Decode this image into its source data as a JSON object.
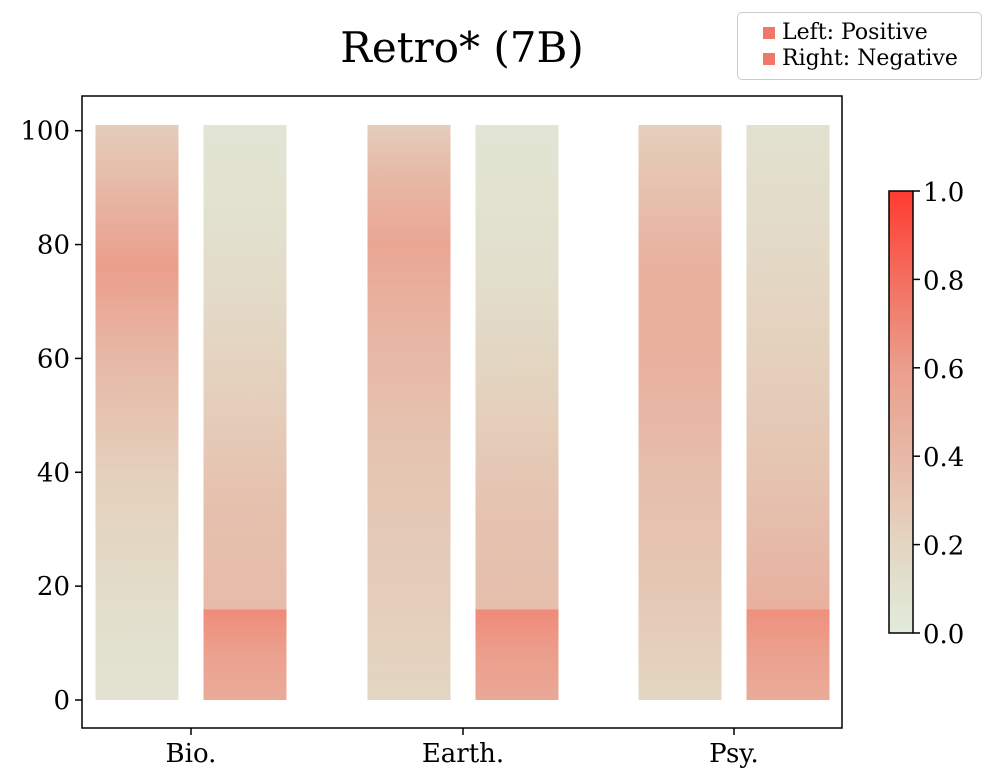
{
  "chart_data": {
    "type": "heatmap",
    "title": "Retro* (7B)",
    "categories": [
      "Bio.",
      "Earth.",
      "Psy."
    ],
    "ylim": [
      0,
      101
    ],
    "y_ticks": [
      "0",
      "20",
      "40",
      "60",
      "80",
      "100"
    ],
    "legend": {
      "placement": "top-right",
      "entries": [
        "Left: Positive",
        "Right: Negative"
      ],
      "swatch_color": "#f0786a"
    },
    "colorbar": {
      "min": 0.0,
      "max": 1.0,
      "tick_labels": [
        "0.0",
        "0.2",
        "0.4",
        "0.6",
        "0.8",
        "1.0"
      ],
      "colors": [
        "#e1ecdc",
        "#e3d6c2",
        "#e7b8a6",
        "#ec9e8c",
        "#f46f5f",
        "#ff3b30"
      ]
    },
    "series": [
      {
        "name": "Left: Positive",
        "category": "Bio.",
        "profile": [
          [
            0,
            0.08
          ],
          [
            15,
            0.12
          ],
          [
            40,
            0.24
          ],
          [
            60,
            0.4
          ],
          [
            76,
            0.6
          ],
          [
            90,
            0.4
          ],
          [
            101,
            0.26
          ]
        ]
      },
      {
        "name": "Right: Negative",
        "category": "Bio.",
        "profile": [
          [
            0,
            0.5
          ],
          [
            8,
            0.58
          ],
          [
            15.8,
            0.68
          ],
          [
            16,
            0.38
          ],
          [
            35,
            0.34
          ],
          [
            50,
            0.26
          ],
          [
            70,
            0.16
          ],
          [
            85,
            0.1
          ],
          [
            101,
            0.06
          ]
        ]
      },
      {
        "name": "Left: Positive",
        "category": "Earth.",
        "profile": [
          [
            0,
            0.2
          ],
          [
            20,
            0.26
          ],
          [
            45,
            0.32
          ],
          [
            65,
            0.42
          ],
          [
            80,
            0.54
          ],
          [
            92,
            0.4
          ],
          [
            101,
            0.26
          ]
        ]
      },
      {
        "name": "Right: Negative",
        "category": "Earth.",
        "profile": [
          [
            0,
            0.52
          ],
          [
            8,
            0.6
          ],
          [
            15.8,
            0.68
          ],
          [
            16,
            0.36
          ],
          [
            35,
            0.32
          ],
          [
            55,
            0.22
          ],
          [
            75,
            0.12
          ],
          [
            101,
            0.06
          ]
        ]
      },
      {
        "name": "Left: Positive",
        "category": "Psy.",
        "profile": [
          [
            0,
            0.2
          ],
          [
            20,
            0.3
          ],
          [
            40,
            0.36
          ],
          [
            60,
            0.46
          ],
          [
            75,
            0.46
          ],
          [
            90,
            0.34
          ],
          [
            101,
            0.24
          ]
        ]
      },
      {
        "name": "Right: Negative",
        "category": "Psy.",
        "profile": [
          [
            0,
            0.5
          ],
          [
            8,
            0.58
          ],
          [
            15.8,
            0.66
          ],
          [
            16,
            0.46
          ],
          [
            25,
            0.4
          ],
          [
            40,
            0.32
          ],
          [
            60,
            0.24
          ],
          [
            80,
            0.16
          ],
          [
            101,
            0.1
          ]
        ]
      }
    ]
  }
}
